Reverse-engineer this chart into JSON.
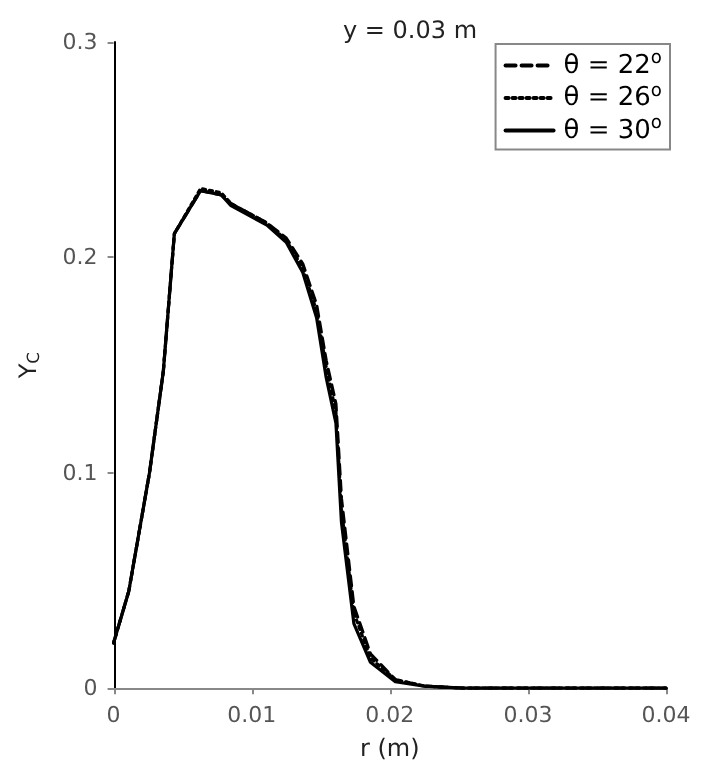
{
  "chart_data": {
    "type": "line",
    "title": "y = 0.03 m",
    "xlabel": "r (m)",
    "ylabel": "Y$_{C}$",
    "xlim": [
      0,
      0.04
    ],
    "xticks": [
      0,
      0.01,
      0.02,
      0.03,
      0.04
    ],
    "ylim": [
      0,
      0.3
    ],
    "yticks": [
      0,
      0.1,
      0.2,
      0.3
    ],
    "x": [
      0,
      0.0011,
      0.0026,
      0.0036,
      0.0044,
      0.0063,
      0.0078,
      0.0085,
      0.0111,
      0.0125,
      0.0137,
      0.0147,
      0.0154,
      0.0161,
      0.0165,
      0.0174,
      0.0186,
      0.0204,
      0.0225,
      0.0253,
      0.04
    ],
    "grid": false,
    "legend": "top right",
    "marker": "none",
    "series": [
      {
        "name": "θ = 22$^{o}$",
        "color": "#000000",
        "line_style": "dashed",
        "values": [
          0.021,
          0.045,
          0.1,
          0.147,
          0.211,
          0.231,
          0.229,
          0.225,
          0.216,
          0.209,
          0.197,
          0.178,
          0.152,
          0.132,
          0.088,
          0.038,
          0.016,
          0.004,
          0.001,
          0,
          0
        ]
      },
      {
        "name": "θ = 26$^{o}$",
        "color": "#000000",
        "line_style": "dotted",
        "values": [
          0.021,
          0.045,
          0.1,
          0.147,
          0.211,
          0.232,
          0.23,
          0.225,
          0.216,
          0.208,
          0.195,
          0.175,
          0.149,
          0.128,
          0.083,
          0.035,
          0.014,
          0.004,
          0.001,
          0,
          0
        ]
      },
      {
        "name": "θ = 30$^{o}$",
        "color": "#000000",
        "line_style": "solid",
        "values": [
          0.021,
          0.045,
          0.1,
          0.147,
          0.211,
          0.231,
          0.229,
          0.224,
          0.215,
          0.207,
          0.193,
          0.172,
          0.144,
          0.123,
          0.077,
          0.03,
          0.012,
          0.003,
          0.001,
          0,
          0
        ]
      }
    ]
  }
}
